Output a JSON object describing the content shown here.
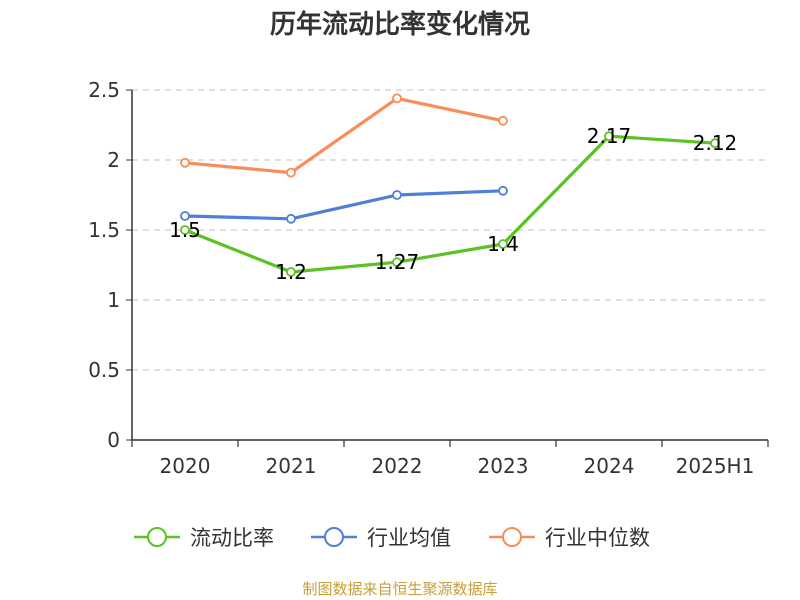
{
  "chart_data": {
    "type": "line",
    "title": "历年流动比率变化情况",
    "categories": [
      "2020",
      "2021",
      "2022",
      "2023",
      "2024",
      "2025H1"
    ],
    "yticks": [
      "0",
      "0.5",
      "1",
      "1.5",
      "2",
      "2.5"
    ],
    "ylim": [
      0,
      2.5
    ],
    "grid": true,
    "legend_position": "bottom",
    "series": [
      {
        "name": "流动比率",
        "color": "#5cc123",
        "values": [
          1.5,
          1.2,
          1.27,
          1.4,
          2.17,
          2.12
        ],
        "labels": [
          "1.5",
          "1.2",
          "1.27",
          "1.4",
          "2.17",
          "2.12"
        ]
      },
      {
        "name": "行业均值",
        "color": "#4f7fd6",
        "values": [
          1.6,
          1.58,
          1.75,
          1.78,
          null,
          null
        ]
      },
      {
        "name": "行业中位数",
        "color": "#fa8c59",
        "values": [
          1.98,
          1.91,
          2.44,
          2.28,
          null,
          null
        ]
      }
    ]
  },
  "source": "制图数据来自恒生聚源数据库"
}
